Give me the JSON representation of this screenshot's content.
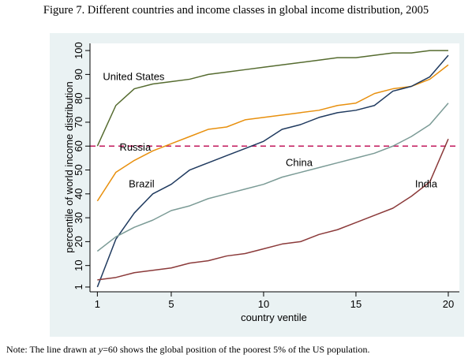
{
  "figure": {
    "caption": "Figure 7. Different countries and income classes in global income distribution, 2005",
    "note_prefix": "Note: The line drawn at ",
    "note_var": "y",
    "note_suffix": "=60 shows the global position of the poorest 5% of  the US population."
  },
  "chart_data": {
    "type": "line",
    "xlabel": "country ventile",
    "ylabel": "percentile of world income distribution",
    "xlim": [
      0.6,
      20.6
    ],
    "ylim": [
      -1,
      103
    ],
    "xticks": [
      1,
      5,
      10,
      15,
      20
    ],
    "yticks": [
      1,
      10,
      20,
      30,
      40,
      50,
      60,
      70,
      80,
      90,
      100
    ],
    "grid": false,
    "legend": "none",
    "x": [
      1,
      2,
      3,
      4,
      5,
      6,
      7,
      8,
      9,
      10,
      11,
      12,
      13,
      14,
      15,
      16,
      17,
      18,
      19,
      20
    ],
    "series": [
      {
        "name": "United States",
        "color": "#556b2f",
        "values": [
          60,
          77,
          84,
          86,
          87,
          88,
          90,
          91,
          92,
          93,
          94,
          95,
          96,
          97,
          97,
          98,
          99,
          99,
          100,
          100
        ]
      },
      {
        "name": "Russia",
        "color": "#e8900e",
        "values": [
          37,
          49,
          54,
          58,
          61,
          64,
          67,
          68,
          71,
          72,
          73,
          74,
          75,
          77,
          78,
          82,
          84,
          85,
          88,
          94
        ]
      },
      {
        "name": "Brazil",
        "color": "#1f3a5f",
        "values": [
          1,
          21,
          32,
          40,
          44,
          50,
          53,
          56,
          59,
          62,
          67,
          69,
          72,
          74,
          75,
          77,
          83,
          85,
          89,
          98
        ]
      },
      {
        "name": "China",
        "color": "#7b9b96",
        "values": [
          16,
          22,
          26,
          29,
          33,
          35,
          38,
          40,
          42,
          44,
          47,
          49,
          51,
          53,
          55,
          57,
          60,
          64,
          69,
          78
        ]
      },
      {
        "name": "India",
        "color": "#8b3a3a",
        "values": [
          4,
          5,
          7,
          8,
          9,
          11,
          12,
          14,
          15,
          17,
          19,
          20,
          23,
          25,
          28,
          31,
          34,
          39,
          45,
          63
        ]
      }
    ],
    "reference_line": {
      "y": 60,
      "color": "#c2185b",
      "style": "dashed"
    },
    "label_positions": {
      "United States": [
        1.3,
        89
      ],
      "Russia": [
        2.2,
        59.5
      ],
      "Brazil": [
        2.7,
        44
      ],
      "China": [
        11.2,
        53
      ],
      "India": [
        18.2,
        44
      ]
    },
    "colors": {
      "plot_background": "#ffffff",
      "panel_background": "#eaf2f3"
    }
  }
}
